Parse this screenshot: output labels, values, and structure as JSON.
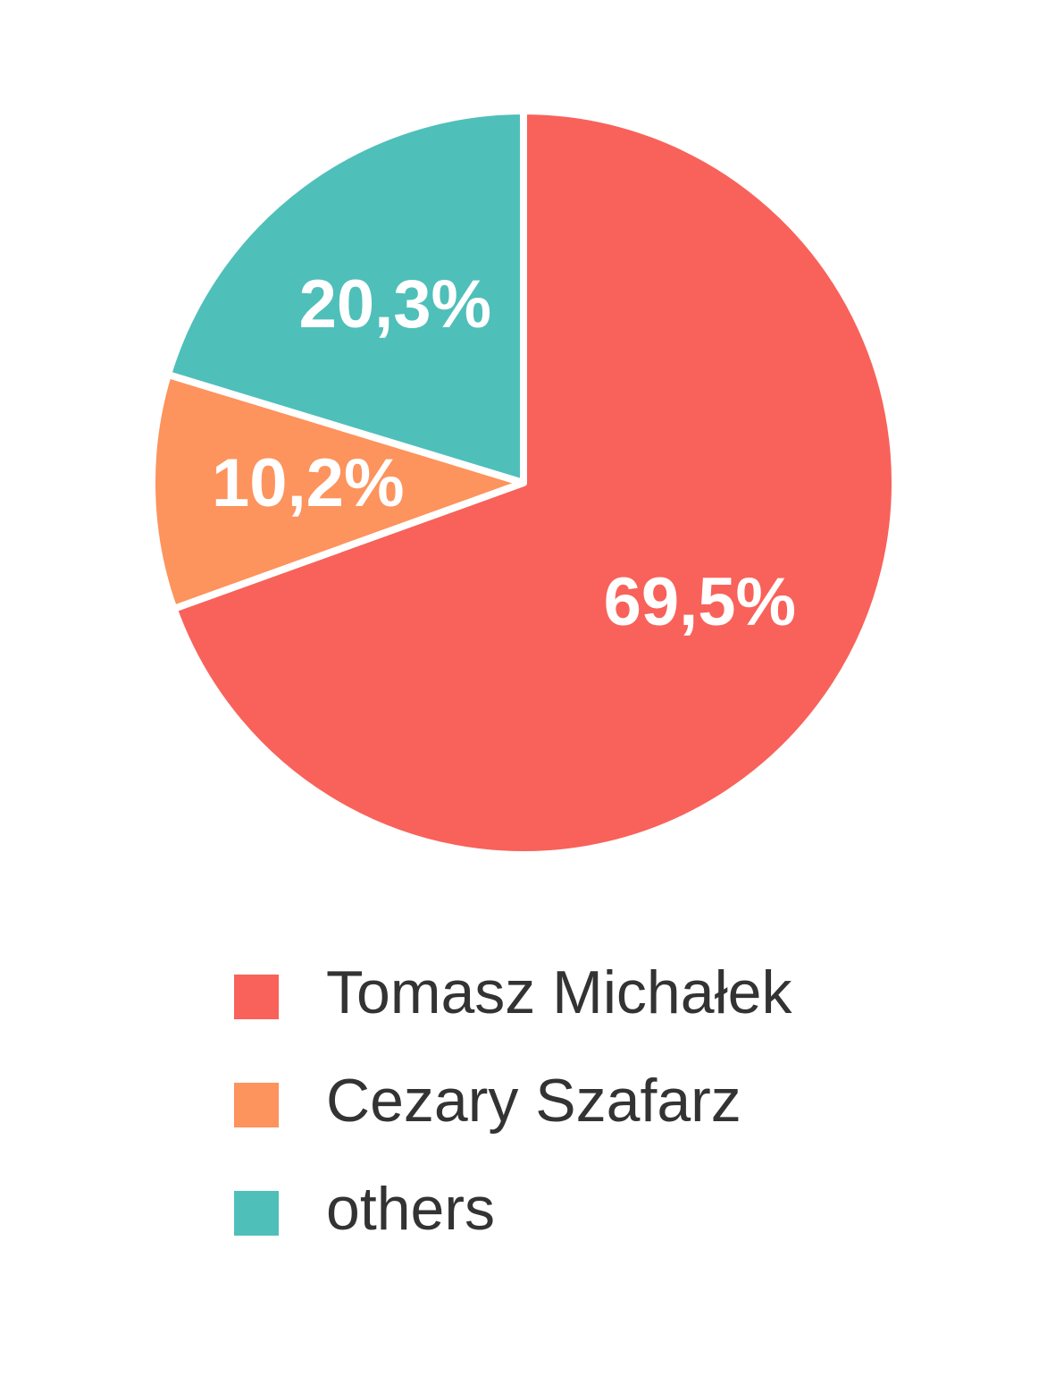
{
  "chart_data": {
    "type": "pie",
    "categories": [
      "Tomasz Michałek",
      "Cezary Szafarz",
      "others"
    ],
    "values": [
      69.5,
      10.2,
      20.3
    ],
    "value_labels": [
      "69,5%",
      "10,2%",
      "20,3%"
    ],
    "colors": [
      "#f8625a",
      "#fd935d",
      "#4fbfba"
    ],
    "legend": "bottom"
  }
}
